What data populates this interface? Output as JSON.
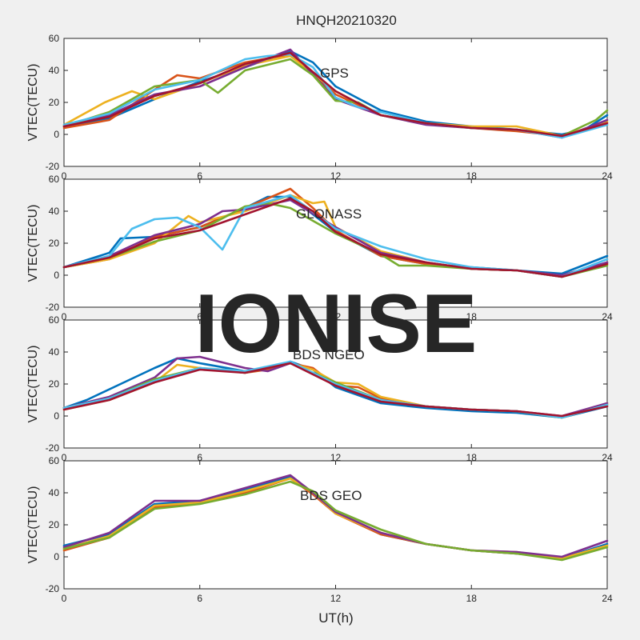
{
  "figure": {
    "title": "HNQH20210320",
    "watermark": "IONISE",
    "xlabel": "UT(h)",
    "background": "#f0f0f0",
    "axes_color": "#262626",
    "watermark_color": "#d9d9d9"
  },
  "palette": [
    "#0072BD",
    "#D95319",
    "#EDB120",
    "#7E2F8E",
    "#77AC30",
    "#4DBEEE",
    "#A2142F"
  ],
  "chart_data": [
    {
      "type": "line",
      "panel_label": "GPS",
      "ylabel": "VTEC(TECU)",
      "xlabel": "",
      "xlim": [
        0,
        24
      ],
      "ylim": [
        -20,
        60
      ],
      "xticks": [
        0,
        6,
        12,
        18,
        24
      ],
      "yticks": [
        -20,
        0,
        20,
        40,
        60
      ],
      "grid": false,
      "series": [
        {
          "x": [
            0,
            2,
            4,
            6,
            8,
            10,
            11,
            12,
            14,
            16,
            18,
            20,
            22,
            23,
            24
          ],
          "y": [
            5,
            10,
            22,
            33,
            42,
            52,
            45,
            30,
            15,
            8,
            5,
            3,
            0,
            3,
            12
          ]
        },
        {
          "x": [
            0,
            2,
            4,
            5,
            6,
            8,
            10,
            11,
            12,
            14,
            16,
            18,
            20,
            22,
            24
          ],
          "y": [
            4,
            9,
            28,
            37,
            35,
            45,
            50,
            38,
            25,
            12,
            7,
            4,
            2,
            -1,
            6
          ]
        },
        {
          "x": [
            0,
            1.8,
            3,
            4,
            6,
            8,
            10,
            12,
            14,
            16,
            18,
            20,
            22,
            24
          ],
          "y": [
            6,
            20,
            27,
            22,
            32,
            43,
            49,
            27,
            12,
            7,
            5,
            5,
            -1,
            8
          ]
        },
        {
          "x": [
            0,
            2,
            4,
            6,
            8,
            10,
            12,
            14,
            16,
            18,
            20,
            22,
            24
          ],
          "y": [
            5,
            12,
            25,
            30,
            42,
            53,
            22,
            12,
            6,
            4,
            3,
            -2,
            9
          ]
        },
        {
          "x": [
            0,
            2,
            4,
            6,
            6.8,
            8,
            10,
            11,
            12,
            13,
            14,
            16,
            18,
            20,
            22,
            23.5,
            24
          ],
          "y": [
            5,
            14,
            30,
            34,
            26,
            40,
            47,
            37,
            21,
            20,
            12,
            7,
            4,
            3,
            -1,
            9,
            15
          ]
        },
        {
          "x": [
            0,
            2,
            4,
            6,
            8,
            9,
            10,
            11,
            12,
            13,
            14,
            16,
            18,
            20,
            22,
            24
          ],
          "y": [
            6,
            13,
            28,
            34,
            47,
            49,
            50,
            42,
            23,
            17,
            14,
            7,
            4,
            3,
            -2,
            6
          ]
        },
        {
          "x": [
            0,
            2,
            4,
            6,
            8,
            10,
            12,
            14,
            16,
            18,
            20,
            22,
            24
          ],
          "y": [
            5,
            11,
            24,
            32,
            44,
            51,
            27,
            12,
            7,
            4,
            3,
            -1,
            7
          ]
        }
      ]
    },
    {
      "type": "line",
      "panel_label": "GLONASS",
      "ylabel": "VTEC(TECU)",
      "xlabel": "",
      "xlim": [
        0,
        24
      ],
      "ylim": [
        -20,
        60
      ],
      "xticks": [
        0,
        6,
        12,
        18,
        24
      ],
      "yticks": [
        -20,
        0,
        20,
        40,
        60
      ],
      "grid": false,
      "series": [
        {
          "x": [
            0,
            2,
            2.5,
            4,
            6,
            8,
            9,
            10,
            11,
            12,
            14,
            16,
            18,
            20,
            22,
            24
          ],
          "y": [
            5,
            14,
            23,
            24,
            30,
            42,
            49,
            49,
            38,
            27,
            12,
            7,
            5,
            3,
            1,
            12
          ]
        },
        {
          "x": [
            0,
            2,
            4,
            6,
            8,
            10,
            11,
            12,
            14,
            16,
            18,
            20,
            22,
            24
          ],
          "y": [
            5,
            10,
            24,
            30,
            42,
            54,
            42,
            28,
            12,
            7,
            4,
            3,
            -1,
            8
          ]
        },
        {
          "x": [
            0,
            2,
            4,
            5.5,
            6,
            8,
            10,
            11,
            11.5,
            12,
            14,
            16,
            18,
            20,
            22,
            24
          ],
          "y": [
            5,
            10,
            20,
            37,
            33,
            40,
            50,
            45,
            46,
            30,
            15,
            8,
            4,
            3,
            -1,
            7
          ]
        },
        {
          "x": [
            0,
            2,
            4,
            6,
            7,
            8,
            10,
            12,
            14,
            16,
            18,
            20,
            22,
            24
          ],
          "y": [
            5,
            12,
            25,
            32,
            40,
            41,
            47,
            30,
            14,
            8,
            4,
            3,
            0,
            8
          ]
        },
        {
          "x": [
            0,
            2,
            4,
            6,
            8,
            9,
            10,
            12,
            14,
            14.8,
            16,
            18,
            20,
            22,
            24
          ],
          "y": [
            5,
            11,
            21,
            28,
            43,
            45,
            42,
            26,
            13,
            6,
            6,
            4,
            3,
            -1,
            6
          ]
        },
        {
          "x": [
            0,
            2,
            3,
            4,
            5,
            6,
            7,
            8,
            10,
            12,
            14,
            16,
            18,
            20,
            22,
            24
          ],
          "y": [
            5,
            12,
            29,
            35,
            36,
            30,
            16,
            42,
            50,
            29,
            18,
            10,
            5,
            3,
            -1,
            10
          ]
        },
        {
          "x": [
            0,
            2,
            4,
            6,
            8,
            10,
            11,
            12,
            14,
            16,
            18,
            20,
            22,
            24
          ],
          "y": [
            5,
            11,
            23,
            28,
            38,
            48,
            40,
            27,
            13,
            8,
            4,
            3,
            -1,
            7
          ]
        }
      ]
    },
    {
      "type": "line",
      "panel_label": "BDS NGEO",
      "ylabel": "VTEC(TECU)",
      "xlabel": "",
      "xlim": [
        0,
        24
      ],
      "ylim": [
        -20,
        60
      ],
      "xticks": [
        0,
        6,
        12,
        18,
        24
      ],
      "yticks": [
        -20,
        0,
        20,
        40,
        60
      ],
      "grid": false,
      "series": [
        {
          "x": [
            0,
            1,
            2.5,
            4,
            5,
            6,
            8,
            9,
            10,
            11,
            12,
            14,
            16,
            18,
            20,
            22,
            24
          ],
          "y": [
            5,
            10,
            20,
            30,
            36,
            33,
            28,
            29,
            34,
            29,
            18,
            8,
            5,
            3,
            2,
            -1,
            6
          ]
        },
        {
          "x": [
            0,
            2,
            4,
            6,
            8,
            9,
            10,
            11,
            12,
            13,
            14,
            16,
            18,
            20,
            22,
            24
          ],
          "y": [
            5,
            11,
            22,
            30,
            27,
            29,
            33,
            30,
            19,
            18,
            11,
            6,
            4,
            3,
            -1,
            7
          ]
        },
        {
          "x": [
            0,
            2,
            4,
            5,
            6,
            8,
            10,
            11,
            12,
            13,
            14,
            16,
            18,
            20,
            22,
            24
          ],
          "y": [
            4,
            10,
            21,
            32,
            30,
            28,
            33,
            29,
            21,
            20,
            12,
            6,
            4,
            3,
            -1,
            8
          ]
        },
        {
          "x": [
            0,
            2,
            4,
            5,
            6,
            8,
            9,
            10,
            12,
            14,
            16,
            18,
            20,
            22,
            24
          ],
          "y": [
            5,
            12,
            24,
            36,
            37,
            30,
            28,
            33,
            20,
            10,
            6,
            4,
            3,
            0,
            8
          ]
        },
        {
          "x": [
            0,
            2,
            4,
            6,
            8,
            10,
            12,
            14,
            16,
            18,
            20,
            22,
            24
          ],
          "y": [
            5,
            11,
            23,
            30,
            27,
            33,
            21,
            10,
            6,
            4,
            3,
            -1,
            7
          ]
        },
        {
          "x": [
            0,
            2,
            4,
            6,
            8,
            10,
            12,
            14,
            16,
            18,
            20,
            22,
            24
          ],
          "y": [
            5,
            11,
            22,
            30,
            28,
            34,
            20,
            10,
            6,
            4,
            3,
            -1,
            7
          ]
        },
        {
          "x": [
            0,
            2,
            4,
            6,
            8,
            10,
            12,
            14,
            16,
            18,
            20,
            22,
            24
          ],
          "y": [
            4,
            10,
            21,
            29,
            27,
            33,
            19,
            9,
            6,
            4,
            3,
            0,
            6
          ]
        }
      ]
    },
    {
      "type": "line",
      "panel_label": "BDS GEO",
      "ylabel": "VTEC(TECU)",
      "xlabel": "",
      "xlim": [
        0,
        24
      ],
      "ylim": [
        -20,
        60
      ],
      "xticks": [
        0,
        6,
        12,
        18,
        24
      ],
      "yticks": [
        -20,
        0,
        20,
        40,
        60
      ],
      "grid": false,
      "series": [
        {
          "x": [
            0,
            2,
            4,
            6,
            8,
            10,
            11,
            12,
            14,
            16,
            18,
            20,
            22,
            24
          ],
          "y": [
            7,
            14,
            33,
            35,
            42,
            50,
            40,
            28,
            14,
            8,
            4,
            2,
            -1,
            8
          ]
        },
        {
          "x": [
            0,
            2,
            4,
            6,
            8,
            10,
            11,
            12,
            14,
            16,
            18,
            20,
            22,
            24
          ],
          "y": [
            4,
            12,
            31,
            34,
            40,
            49,
            39,
            27,
            14,
            8,
            4,
            2,
            -1,
            7
          ]
        },
        {
          "x": [
            0,
            2,
            4,
            6,
            8,
            10,
            11,
            12,
            14,
            16,
            18,
            20,
            22,
            24
          ],
          "y": [
            5,
            13,
            32,
            34,
            41,
            49,
            40,
            27,
            15,
            8,
            4,
            3,
            -1,
            7
          ]
        },
        {
          "x": [
            0,
            2,
            4,
            6,
            8,
            10,
            11,
            12,
            14,
            16,
            18,
            20,
            22,
            24
          ],
          "y": [
            6,
            15,
            35,
            35,
            43,
            51,
            40,
            28,
            15,
            8,
            4,
            3,
            0,
            10
          ]
        },
        {
          "x": [
            0,
            2,
            4,
            6,
            8,
            10,
            11,
            12,
            14,
            16,
            18,
            20,
            22,
            24
          ],
          "y": [
            5,
            12,
            30,
            33,
            39,
            47,
            41,
            29,
            17,
            8,
            4,
            2,
            -2,
            6
          ]
        }
      ]
    }
  ]
}
